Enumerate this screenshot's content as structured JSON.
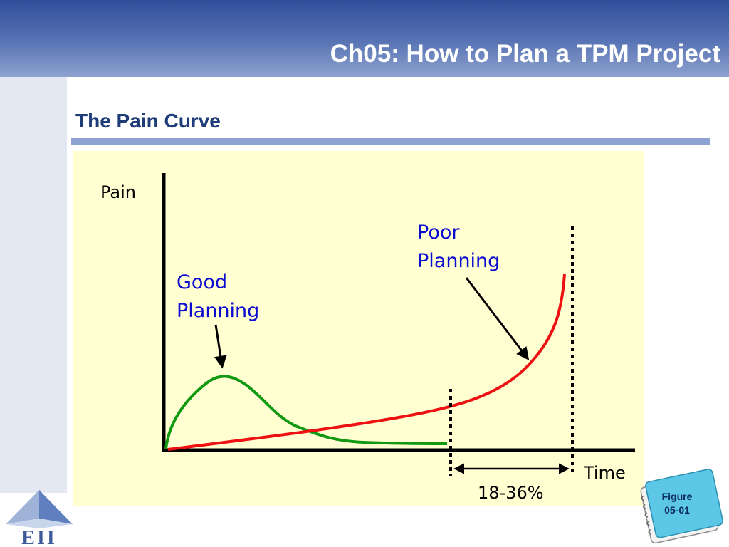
{
  "slide": {
    "title": "Ch05: How to Plan a TPM Project",
    "subtitle": "The Pain Curve"
  },
  "diagram": {
    "y_axis_label": "Pain",
    "x_axis_label": "Time",
    "good_planning_label": [
      "Good",
      "Planning"
    ],
    "poor_planning_label": [
      "Poor",
      "Planning"
    ],
    "range_label": "18-36%",
    "colors": {
      "good_curve": "#119911",
      "poor_curve": "#ee1111",
      "label_text": "#0b0bd0",
      "panel": "#ffffd2"
    }
  },
  "logo": {
    "text": "EII"
  },
  "badge": {
    "text": "Figure\n05-01"
  }
}
